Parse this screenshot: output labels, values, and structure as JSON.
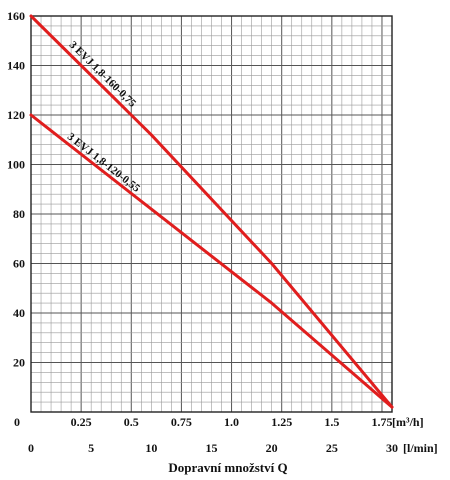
{
  "chart_data": {
    "type": "line",
    "title": "",
    "xlabel": "Dopravní množství Q",
    "ylabel": "",
    "grid": true,
    "x_unit_primary": "[m³/h]",
    "x_unit_secondary": "[l/min]",
    "xlim": [
      0,
      1.8
    ],
    "ylim": [
      0,
      160
    ],
    "x_ticks_primary": [
      {
        "value": 0,
        "label": "0"
      },
      {
        "value": 0.25,
        "label": "0.25"
      },
      {
        "value": 0.5,
        "label": "0.5"
      },
      {
        "value": 0.75,
        "label": "0.75"
      },
      {
        "value": 1.0,
        "label": "1.0"
      },
      {
        "value": 1.25,
        "label": "1.25"
      },
      {
        "value": 1.5,
        "label": "1.5"
      },
      {
        "value": 1.75,
        "label": "1.75"
      }
    ],
    "x_ticks_secondary": [
      {
        "value": 0,
        "label": "0"
      },
      {
        "value": 5,
        "label": "5"
      },
      {
        "value": 10,
        "label": "10"
      },
      {
        "value": 15,
        "label": "15"
      },
      {
        "value": 20,
        "label": "20"
      },
      {
        "value": 25,
        "label": "25"
      },
      {
        "value": 30,
        "label": "30"
      }
    ],
    "y_ticks": [
      {
        "value": 20,
        "label": "20"
      },
      {
        "value": 40,
        "label": "40"
      },
      {
        "value": 60,
        "label": "60"
      },
      {
        "value": 80,
        "label": "80"
      },
      {
        "value": 100,
        "label": "100"
      },
      {
        "value": 120,
        "label": "120"
      },
      {
        "value": 140,
        "label": "140"
      },
      {
        "value": 160,
        "label": "160"
      }
    ],
    "series": [
      {
        "name": "3 EVJ 1,8-160-0,75",
        "color": "#e01e1e",
        "points": [
          [
            0,
            160
          ],
          [
            0.6,
            112
          ],
          [
            1.2,
            60
          ],
          [
            1.8,
            2
          ]
        ]
      },
      {
        "name": "3 EVJ 1,8-120-0,55",
        "color": "#e01e1e",
        "points": [
          [
            0,
            120
          ],
          [
            0.6,
            82
          ],
          [
            1.2,
            44
          ],
          [
            1.8,
            2
          ]
        ]
      }
    ]
  },
  "zero_label": "0"
}
